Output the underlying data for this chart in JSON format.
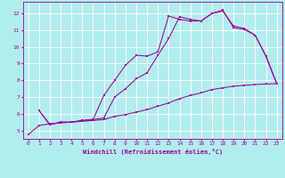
{
  "xlabel": "Windchill (Refroidissement éolien,°C)",
  "bg_color": "#b2eded",
  "line_color": "#990099",
  "grid_color": "#ffffff",
  "xlim": [
    -0.5,
    23.5
  ],
  "ylim": [
    4.5,
    12.7
  ],
  "xticks": [
    0,
    1,
    2,
    3,
    4,
    5,
    6,
    7,
    8,
    9,
    10,
    11,
    12,
    13,
    14,
    15,
    16,
    17,
    18,
    19,
    20,
    21,
    22,
    23
  ],
  "yticks": [
    5,
    6,
    7,
    8,
    9,
    10,
    11,
    12
  ],
  "line1_x": [
    0,
    1,
    2,
    3,
    4,
    5,
    6,
    7,
    8,
    9,
    10,
    11,
    12,
    13,
    14,
    15,
    16,
    17,
    18,
    19,
    20,
    21,
    22,
    23
  ],
  "line1_y": [
    4.75,
    5.3,
    5.4,
    5.45,
    5.5,
    5.55,
    5.6,
    5.65,
    5.85,
    5.95,
    6.1,
    6.25,
    6.45,
    6.65,
    6.9,
    7.1,
    7.25,
    7.45,
    7.55,
    7.65,
    7.7,
    7.75,
    7.78,
    7.8
  ],
  "line2_x": [
    1,
    2,
    3,
    4,
    5,
    6,
    7,
    8,
    9,
    10,
    11,
    12,
    13,
    14,
    15,
    16,
    17,
    18,
    19,
    20,
    21,
    22,
    23
  ],
  "line2_y": [
    6.2,
    5.35,
    5.5,
    5.5,
    5.6,
    5.65,
    7.1,
    8.0,
    8.9,
    9.5,
    9.45,
    9.7,
    11.85,
    11.65,
    11.55,
    11.55,
    12.0,
    12.2,
    11.15,
    11.05,
    10.7,
    9.45,
    7.8
  ],
  "line3_x": [
    1,
    2,
    3,
    4,
    5,
    6,
    7,
    8,
    9,
    10,
    11,
    12,
    13,
    14,
    15,
    16,
    17,
    18,
    19,
    20,
    21,
    22,
    23
  ],
  "line3_y": [
    6.2,
    5.35,
    5.5,
    5.5,
    5.6,
    5.65,
    5.75,
    7.0,
    7.5,
    8.1,
    8.45,
    9.5,
    10.5,
    11.8,
    11.65,
    11.55,
    12.0,
    12.15,
    11.25,
    11.1,
    10.7,
    9.45,
    7.8
  ]
}
